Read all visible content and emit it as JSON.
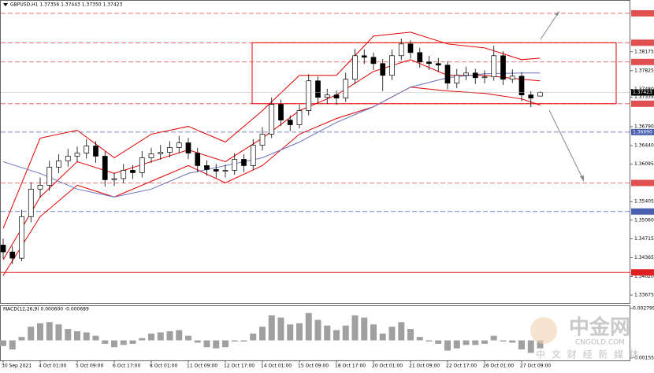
{
  "header": "GBPUSD,H1 1.37356 1.37443 1.37350 1.37423",
  "chart_data": {
    "type": "candlestick",
    "open": [
      1.346,
      1.34473,
      1.34357,
      1.35126,
      1.35635,
      1.35707,
      1.36041,
      1.36157,
      1.36244,
      1.36302,
      1.36433,
      1.36244,
      1.35809,
      1.3583,
      1.35983,
      1.35939,
      1.36215,
      1.36288,
      1.36317,
      1.36404,
      1.36491,
      1.36302,
      1.3607,
      1.35998,
      1.35968,
      1.35983,
      1.36186,
      1.3607,
      1.36448,
      1.36651,
      1.37203,
      1.36912,
      1.36825,
      1.37087,
      1.37638,
      1.37333,
      1.37377,
      1.37319,
      1.37667,
      1.38103,
      1.38074,
      1.37958,
      1.3774,
      1.38103,
      1.38321,
      1.38161,
      1.37987,
      1.37958,
      1.37929,
      1.37595,
      1.3774,
      1.37783,
      1.37696,
      1.37711,
      1.38103,
      1.37667,
      1.37725,
      1.37377,
      1.37356
    ],
    "high": [
      1.3472,
      1.3458,
      1.3525,
      1.3576,
      1.3585,
      1.3616,
      1.3628,
      1.3638,
      1.3642,
      1.3656,
      1.3652,
      1.3633,
      1.3594,
      1.361,
      1.3608,
      1.3634,
      1.364,
      1.3645,
      1.3652,
      1.3662,
      1.3658,
      1.364,
      1.3617,
      1.361,
      1.3609,
      1.363,
      1.3628,
      1.3656,
      1.3678,
      1.3733,
      1.3729,
      1.37,
      1.372,
      1.3776,
      1.3772,
      1.3749,
      1.3746,
      1.3779,
      1.3823,
      1.3822,
      1.3816,
      1.3804,
      1.3822,
      1.3842,
      1.3839,
      1.3825,
      1.381,
      1.3806,
      1.38,
      1.3786,
      1.379,
      1.3786,
      1.3783,
      1.3829,
      1.3818,
      1.3785,
      1.378,
      1.3745,
      1.37443
    ],
    "low": [
      1.3435,
      1.3425,
      1.343,
      1.3502,
      1.3548,
      1.356,
      1.3593,
      1.3605,
      1.3613,
      1.362,
      1.3612,
      1.3568,
      1.3569,
      1.3575,
      1.3582,
      1.3585,
      1.3612,
      1.3618,
      1.3622,
      1.363,
      1.3619,
      1.3595,
      1.3588,
      1.3584,
      1.3585,
      1.359,
      1.3595,
      1.3599,
      1.3635,
      1.3658,
      1.368,
      1.3671,
      1.3676,
      1.37,
      1.3722,
      1.3721,
      1.372,
      1.3725,
      1.3758,
      1.3795,
      1.3784,
      1.3745,
      1.3765,
      1.3802,
      1.3805,
      1.3788,
      1.3784,
      1.378,
      1.3748,
      1.375,
      1.3765,
      1.3758,
      1.3759,
      1.3764,
      1.3756,
      1.376,
      1.3726,
      1.3715,
      1.3735
    ],
    "close": [
      1.34473,
      1.34357,
      1.35126,
      1.35635,
      1.35707,
      1.36041,
      1.36157,
      1.36244,
      1.36302,
      1.36433,
      1.36244,
      1.35809,
      1.3583,
      1.35983,
      1.35939,
      1.36215,
      1.36288,
      1.36317,
      1.36404,
      1.36491,
      1.36302,
      1.3607,
      1.35998,
      1.35968,
      1.35983,
      1.36186,
      1.3607,
      1.36448,
      1.36651,
      1.37203,
      1.36912,
      1.36825,
      1.37087,
      1.37638,
      1.37333,
      1.37377,
      1.37319,
      1.37667,
      1.38103,
      1.38074,
      1.37958,
      1.3774,
      1.38103,
      1.38321,
      1.38161,
      1.37987,
      1.37958,
      1.37929,
      1.37595,
      1.3774,
      1.37783,
      1.37696,
      1.37711,
      1.38103,
      1.37667,
      1.37725,
      1.37377,
      1.37319,
      1.37423
    ],
    "up_color": "#ffffff",
    "down_color": "#000000",
    "wick_color": "#000000",
    "ylim": [
      1.33529,
      1.39119
    ],
    "yticks": [
      1.38175,
      1.37825,
      {
        "value": 1.3748,
        "label": "1.37480"
      },
      1.37335,
      {
        "value": 1.3679,
        "label": "1.36790"
      },
      {
        "value": 1.3644,
        "label": "1.36440"
      },
      1.36095,
      1.35405,
      {
        "value": 1.3506,
        "label": "1.35060"
      },
      1.34715,
      1.34365,
      {
        "value": 1.3402,
        "label": "1.34020"
      },
      1.33675
    ],
    "xticks": [
      {
        "value": 0,
        "label": "30 Sep 2021"
      },
      {
        "value": 4,
        "label": "4 Oct 01:00"
      },
      {
        "value": 8,
        "label": "5 Oct 09:00"
      },
      {
        "value": 12,
        "label": "6 Oct 17:00"
      },
      {
        "value": 16,
        "label": "8 Oct 01:00"
      },
      {
        "value": 20,
        "label": "11 Oct 09:00"
      },
      {
        "value": 24,
        "label": "12 Oct 17:00"
      },
      {
        "value": 28,
        "label": "14 Oct 01:00"
      },
      {
        "value": 32,
        "label": "15 Oct 09:00"
      },
      {
        "value": 36,
        "label": "18 Oct 17:00"
      },
      {
        "value": 40,
        "label": "20 Oct 01:00"
      },
      {
        "value": 44,
        "label": "21 Oct 09:00"
      },
      {
        "value": 48,
        "label": "22 Oct 17:00"
      },
      {
        "value": 52,
        "label": "26 Oct 01:00"
      },
      {
        "value": 56,
        "label": "27 Oct 09:00"
      }
    ],
    "levels": [
      {
        "value": 1.38887,
        "color": "#e05050",
        "style": "dashed"
      },
      {
        "value": 1.38343,
        "color": "#e05050",
        "style": "dashed"
      },
      {
        "value": 1.37987,
        "color": "#e05050",
        "style": "dashed"
      },
      {
        "value": 1.37215,
        "color": "#e05050",
        "style": "dashed"
      },
      {
        "value": 1.3669,
        "label": "1.36690",
        "color": "#4a5fb0",
        "style": "dashed"
      },
      {
        "value": 1.35749,
        "color": "#e05050",
        "style": "dashed"
      },
      {
        "value": 1.35221,
        "color": "#4a5fb0",
        "style": "dashed"
      },
      {
        "value": 1.34094,
        "color": "#e02020",
        "style": "solid"
      }
    ],
    "current": 1.37423,
    "overlays": {
      "x": [
        0,
        4,
        8,
        12,
        16,
        20,
        24,
        28,
        32,
        36,
        40,
        44,
        48,
        52,
        56,
        58
      ],
      "series": [
        {
          "color": "#e00000",
          "values": [
            1.34909,
            1.36578,
            1.36724,
            1.36215,
            1.36651,
            1.36796,
            1.36506,
            1.37087,
            1.3774,
            1.3774,
            1.38466,
            1.38539,
            1.38321,
            1.38248,
            1.3803,
            1.38059
          ]
        },
        {
          "color": "#e00000",
          "values": [
            1.34328,
            1.35489,
            1.36143,
            1.35925,
            1.36143,
            1.36361,
            1.36143,
            1.36578,
            1.37087,
            1.37377,
            1.37812,
            1.3803,
            1.3774,
            1.3774,
            1.37667,
            1.37638
          ]
        },
        {
          "color": "#e00000",
          "values": [
            1.34037,
            1.35126,
            1.35707,
            1.35489,
            1.3578,
            1.3607,
            1.35751,
            1.3607,
            1.36651,
            1.36941,
            1.37159,
            1.37522,
            1.3745,
            1.37406,
            1.37304,
            1.37188
          ]
        },
        {
          "color": "#6a70c0",
          "values": [
            1.36143,
            1.35925,
            1.35635,
            1.35489,
            1.35635,
            1.35925,
            1.3607,
            1.36215,
            1.36506,
            1.36869,
            1.37159,
            1.37522,
            1.37696,
            1.37769,
            1.37783,
            1.37783
          ]
        }
      ]
    },
    "macd": {
      "label": "MACD(12,26,9) 0.000600 -0.000689",
      "color": "#a0a0a0",
      "values": [
        -0.0005,
        -0.0008,
        0.0003,
        0.0012,
        0.0015,
        0.0016,
        0.0014,
        0.001,
        0.0008,
        0.0007,
        0.0004,
        -0.0003,
        -0.0006,
        -0.0004,
        -0.0003,
        0.0002,
        0.0006,
        0.0007,
        0.0008,
        0.0009,
        0.0004,
        -0.0002,
        -0.0006,
        -0.0007,
        -0.0006,
        -0.0001,
        -0.0001,
        0.0006,
        0.0012,
        0.0022,
        0.002,
        0.0014,
        0.0015,
        0.0024,
        0.0018,
        0.0013,
        0.0009,
        0.0013,
        0.0022,
        0.002,
        0.0014,
        0.0006,
        0.0012,
        0.0016,
        0.001,
        0.0003,
        -0.0001,
        -0.0003,
        -0.0009,
        -0.0007,
        -0.0004,
        -0.0004,
        -0.0003,
        0.0004,
        -0.0001,
        -0.0002,
        -0.0008,
        -0.0011,
        -0.0007
      ],
      "ylim": [
        -0.001551,
        0.002799
      ],
      "yticks": [
        0.002799,
        -0.001551
      ]
    }
  },
  "watermark": {
    "brand": "中金网",
    "site": "CNGOLD.COM",
    "tagline": "中 文 财 经 新 媒 体"
  }
}
